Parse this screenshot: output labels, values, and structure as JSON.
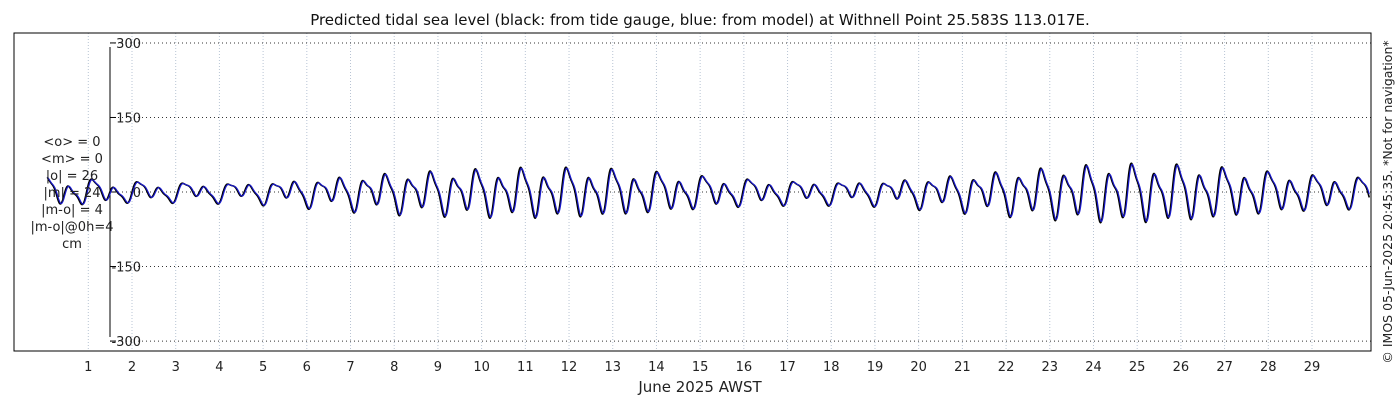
{
  "chart_data": {
    "type": "line",
    "title": "Predicted tidal sea level (black: from tide gauge, blue: from model) at Withnell Point 25.583S 113.017E.",
    "xlabel": "June 2025 AWST",
    "ylabel": "",
    "x_ticks": [
      "1",
      "2",
      "3",
      "4",
      "5",
      "6",
      "7",
      "8",
      "9",
      "10",
      "11",
      "12",
      "13",
      "14",
      "15",
      "16",
      "17",
      "18",
      "19",
      "20",
      "21",
      "22",
      "23",
      "24",
      "25",
      "26",
      "27",
      "28",
      "29"
    ],
    "xlim": [
      -0.7,
      30.35
    ],
    "ylim": [
      -320,
      320
    ],
    "y_ticks": [
      300,
      150,
      0,
      -150,
      -300
    ],
    "y_tick_labels": [
      "300",
      "150",
      "0",
      "-150",
      "-300"
    ],
    "grid": "dotted",
    "stats": [
      "<o> = 0",
      "<m> = 0",
      "|o| = 26",
      "|m| = 24",
      "|m-o| = 4",
      "|m-o|@0h=4",
      "cm"
    ],
    "series": [
      {
        "color": "#000000",
        "time_offset_days": 0.01,
        "amp_scale": 1.0
      },
      {
        "color": "#1a1acc",
        "time_offset_days": -0.01,
        "amp_scale": 0.96
      }
    ],
    "semidiurnal_cm": [
      {
        "day": 0,
        "amp": 22
      },
      {
        "day": 1,
        "amp": 18
      },
      {
        "day": 2,
        "amp": 14
      },
      {
        "day": 3,
        "amp": 13
      },
      {
        "day": 4,
        "amp": 13
      },
      {
        "day": 5,
        "amp": 15
      },
      {
        "day": 6,
        "amp": 20
      },
      {
        "day": 7,
        "amp": 26
      },
      {
        "day": 8,
        "amp": 31
      },
      {
        "day": 9,
        "amp": 34
      },
      {
        "day": 10,
        "amp": 37
      },
      {
        "day": 11,
        "amp": 39
      },
      {
        "day": 12,
        "amp": 39
      },
      {
        "day": 13,
        "amp": 37
      },
      {
        "day": 14,
        "amp": 32
      },
      {
        "day": 15,
        "amp": 25
      },
      {
        "day": 16,
        "amp": 20
      },
      {
        "day": 17,
        "amp": 17
      },
      {
        "day": 18,
        "amp": 16
      },
      {
        "day": 19,
        "amp": 17
      },
      {
        "day": 20,
        "amp": 22
      },
      {
        "day": 21,
        "amp": 28
      },
      {
        "day": 22,
        "amp": 34
      },
      {
        "day": 23,
        "amp": 40
      },
      {
        "day": 24,
        "amp": 45
      },
      {
        "day": 25,
        "amp": 47
      },
      {
        "day": 26,
        "amp": 45
      },
      {
        "day": 27,
        "amp": 40
      },
      {
        "day": 28,
        "amp": 33
      },
      {
        "day": 29,
        "amp": 27
      },
      {
        "day": 30,
        "amp": 24
      }
    ],
    "diurnal_cm": 10
  },
  "side_text": "© IMOS 05-Jun-2025 20:45:35. *Not for navigation*"
}
